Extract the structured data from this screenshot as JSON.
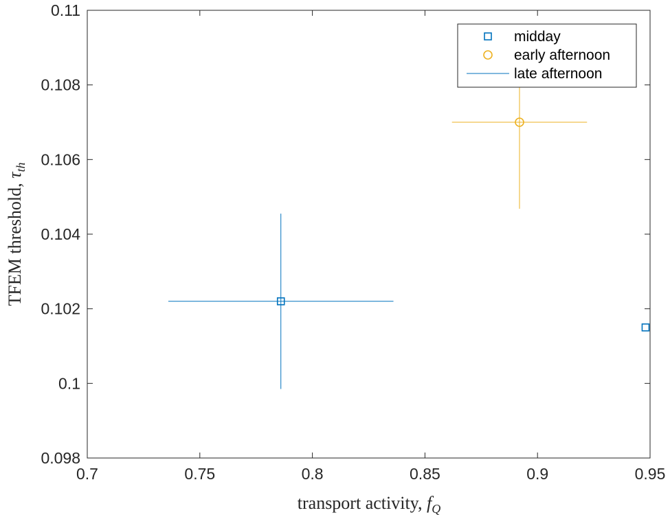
{
  "chart_data": {
    "type": "scatter",
    "xlabel": "transport activity, ",
    "xlabel_symbol": "f",
    "xlabel_subscript": "Q",
    "ylabel": "TFEM threshold, ",
    "ylabel_symbol": "τ",
    "ylabel_subscript": "th",
    "xlim": [
      0.7,
      0.95
    ],
    "ylim": [
      0.098,
      0.11
    ],
    "xticks": [
      0.7,
      0.75,
      0.8,
      0.85,
      0.9,
      0.95
    ],
    "xtick_labels": [
      "0.7",
      "0.75",
      "0.8",
      "0.85",
      "0.9",
      "0.95"
    ],
    "yticks": [
      0.098,
      0.1,
      0.102,
      0.104,
      0.106,
      0.108,
      0.11
    ],
    "ytick_labels": [
      "0.098",
      "0.1",
      "0.102",
      "0.104",
      "0.106",
      "0.108",
      "0.11"
    ],
    "grid": false,
    "legend_position": "top-right",
    "series": [
      {
        "name": "midday",
        "marker": "square",
        "color": "#0072BD",
        "points": [
          {
            "x": 0.786,
            "y": 0.1022,
            "xerr": 0.05,
            "yerr": 0.00235
          },
          {
            "x": 0.948,
            "y": 0.1015,
            "xerr": 0,
            "yerr": 0
          }
        ]
      },
      {
        "name": "early afternoon",
        "marker": "circle",
        "color": "#EDB120",
        "points": [
          {
            "x": 0.892,
            "y": 0.107,
            "xerr": 0.03,
            "yerr": 0.00232
          }
        ]
      },
      {
        "name": "late afternoon",
        "marker": "line",
        "color": "#0072BD",
        "points": []
      }
    ]
  }
}
